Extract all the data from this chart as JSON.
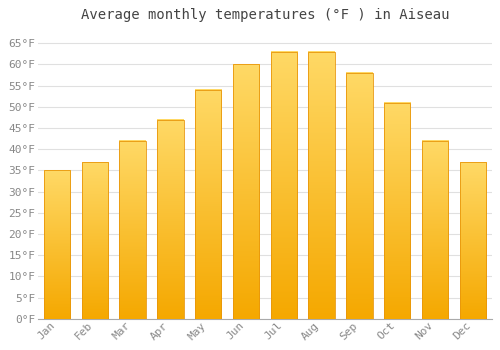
{
  "title": "Average monthly temperatures (°F ) in Aiseau",
  "months": [
    "Jan",
    "Feb",
    "Mar",
    "Apr",
    "May",
    "Jun",
    "Jul",
    "Aug",
    "Sep",
    "Oct",
    "Nov",
    "Dec"
  ],
  "values": [
    35,
    37,
    42,
    47,
    54,
    60,
    63,
    63,
    58,
    51,
    42,
    37
  ],
  "bar_color_bottom": "#F5A800",
  "bar_color_top": "#FFD966",
  "bar_edge_color": "#E8960A",
  "ylim": [
    0,
    68
  ],
  "yticks": [
    0,
    5,
    10,
    15,
    20,
    25,
    30,
    35,
    40,
    45,
    50,
    55,
    60,
    65
  ],
  "ytick_labels": [
    "0°F",
    "5°F",
    "10°F",
    "15°F",
    "20°F",
    "25°F",
    "30°F",
    "35°F",
    "40°F",
    "45°F",
    "50°F",
    "55°F",
    "60°F",
    "65°F"
  ],
  "background_color": "#FFFFFF",
  "plot_bg_color": "#FFFFFF",
  "grid_color": "#E0E0E0",
  "title_fontsize": 10,
  "tick_fontsize": 8,
  "font_family": "monospace",
  "title_color": "#444444",
  "tick_color": "#888888"
}
